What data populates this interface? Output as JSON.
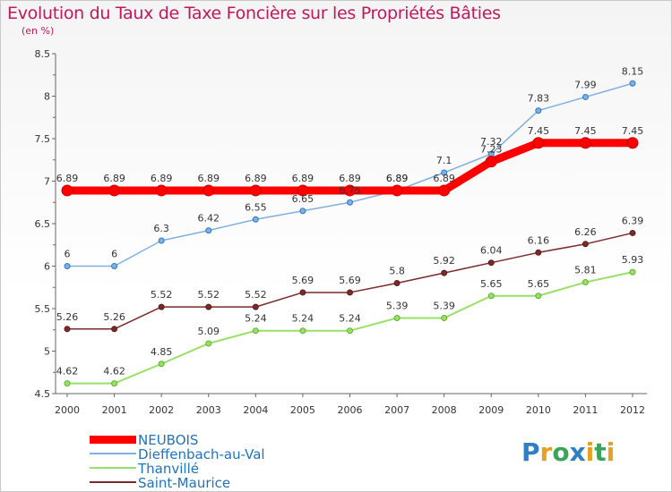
{
  "header": {
    "title": "Evolution du Taux de Taxe Foncière sur les Propriétés Bâties",
    "subtitle": "(en %)"
  },
  "chart_data": {
    "type": "line",
    "title": "Evolution du Taux de Taxe Foncière sur les Propriétés Bâties",
    "ylabel": "(en %)",
    "xlabel": "",
    "ylim": [
      4.5,
      8.5
    ],
    "yticks": [
      "4.5",
      "5",
      "5.5",
      "6",
      "6.5",
      "7",
      "7.5",
      "8",
      "8.5"
    ],
    "categories": [
      "2000",
      "2001",
      "2002",
      "2003",
      "2004",
      "2005",
      "2006",
      "2007",
      "2008",
      "2009",
      "2010",
      "2011",
      "2012"
    ],
    "series": [
      {
        "name": "NEUBOIS",
        "color": "#ff0000",
        "values": [
          6.89,
          6.89,
          6.89,
          6.89,
          6.89,
          6.89,
          6.89,
          6.89,
          6.89,
          7.23,
          7.45,
          7.45,
          7.45
        ],
        "labels": [
          "6.89",
          "6.89",
          "6.89",
          "6.89",
          "6.89",
          "6.89",
          "6.89",
          "6.89",
          "6.89",
          "7.23",
          "7.45",
          "7.45",
          "7.45"
        ]
      },
      {
        "name": "Dieffenbach-au-Val",
        "color": "#7fb0e0",
        "values": [
          6,
          6,
          6.3,
          6.42,
          6.55,
          6.65,
          6.75,
          6.89,
          7.1,
          7.32,
          7.83,
          7.99,
          8.15
        ],
        "labels": [
          "6",
          "6",
          "6.3",
          "6.42",
          "6.55",
          "6.65",
          "6.75",
          "6.89",
          "7.1",
          "7.32",
          "7.83",
          "7.99",
          "8.15"
        ]
      },
      {
        "name": "Thanvillé",
        "color": "#99e066",
        "values": [
          4.62,
          4.62,
          4.85,
          5.09,
          5.24,
          5.24,
          5.24,
          5.39,
          5.39,
          5.65,
          5.65,
          5.81,
          5.93
        ],
        "labels": [
          "4.62",
          "4.62",
          "4.85",
          "5.09",
          "5.24",
          "5.24",
          "5.24",
          "5.39",
          "5.39",
          "5.65",
          "5.65",
          "5.81",
          "5.93"
        ]
      },
      {
        "name": "Saint-Maurice",
        "color": "#7a2a2a",
        "values": [
          5.26,
          5.26,
          5.52,
          5.52,
          5.52,
          5.69,
          5.69,
          5.8,
          5.92,
          6.04,
          6.16,
          6.26,
          6.39
        ],
        "labels": [
          "5.26",
          "5.26",
          "5.52",
          "5.52",
          "5.52",
          "5.69",
          "5.69",
          "5.8",
          "5.92",
          "6.04",
          "6.16",
          "6.26",
          "6.39"
        ]
      }
    ],
    "legend_position": "bottom-left"
  },
  "logo": {
    "text": "Proxiti",
    "letters": [
      "P",
      "r",
      "o",
      "x",
      "i",
      "t",
      "i"
    ],
    "colors": [
      "#2f7fc6",
      "#e8a020",
      "#3aa55a",
      "#2f7fc6",
      "#e8a020",
      "#3aa55a",
      "#e8a020"
    ]
  }
}
